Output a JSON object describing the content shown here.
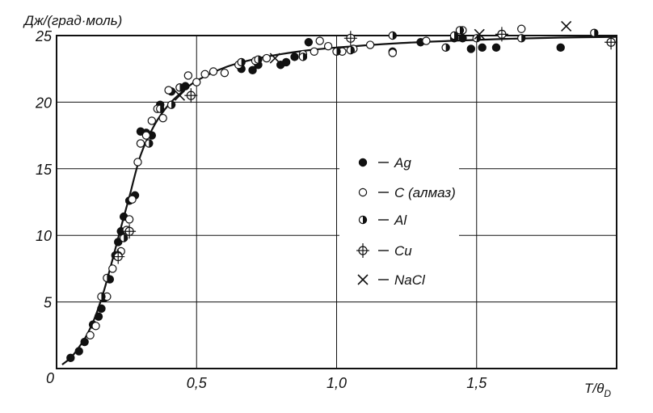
{
  "chart_data": {
    "type": "scatter",
    "ylabel": "Дж/(град·моль)",
    "xlabel": {
      "main": "T/θ",
      "subscript": "D"
    },
    "origin_label": "0",
    "xlim": [
      0,
      2.0
    ],
    "ylim": [
      0,
      25
    ],
    "x_ticks": [
      {
        "value": 0.5,
        "label": "0,5"
      },
      {
        "value": 1.0,
        "label": "1,0"
      },
      {
        "value": 1.5,
        "label": "1,5"
      }
    ],
    "y_ticks": [
      {
        "value": 5,
        "label": "5"
      },
      {
        "value": 10,
        "label": "10"
      },
      {
        "value": 15,
        "label": "15"
      },
      {
        "value": 20,
        "label": "20"
      },
      {
        "value": 25,
        "label": "25"
      }
    ],
    "grid": true,
    "legend_placement": "center-right",
    "curve": {
      "x": [
        0.02,
        0.05,
        0.08,
        0.11,
        0.14,
        0.17,
        0.2,
        0.23,
        0.26,
        0.3,
        0.35,
        0.4,
        0.45,
        0.5,
        0.6,
        0.7,
        0.8,
        0.9,
        1.0,
        1.2,
        1.4,
        1.6,
        1.8,
        2.0
      ],
      "y": [
        0.3,
        0.8,
        1.6,
        2.6,
        4.0,
        5.9,
        8.2,
        10.6,
        12.9,
        16.0,
        18.3,
        19.8,
        20.8,
        21.6,
        22.6,
        23.2,
        23.6,
        23.9,
        24.1,
        24.4,
        24.6,
        24.75,
        24.85,
        24.9
      ]
    },
    "series": [
      {
        "name": "Ag",
        "marker": "filled-circle",
        "x": [
          0.05,
          0.08,
          0.1,
          0.13,
          0.15,
          0.16,
          0.17,
          0.19,
          0.21,
          0.22,
          0.23,
          0.24,
          0.26,
          0.28,
          0.3,
          0.32,
          0.34,
          0.37,
          0.41,
          0.44,
          0.46,
          0.66,
          0.7,
          0.72,
          0.8,
          0.82,
          0.85,
          0.9,
          1.2,
          1.3,
          1.42,
          1.45,
          1.48,
          1.52,
          1.57,
          1.8
        ],
        "y": [
          0.8,
          1.3,
          2.0,
          3.3,
          3.9,
          4.5,
          5.3,
          6.7,
          8.5,
          9.5,
          10.3,
          11.4,
          12.6,
          13.0,
          17.8,
          17.7,
          17.5,
          19.8,
          20.8,
          21.1,
          21.2,
          22.5,
          22.4,
          22.8,
          22.8,
          23.0,
          23.4,
          24.5,
          23.8,
          24.5,
          24.8,
          24.8,
          24.0,
          24.1,
          24.1,
          24.1
        ]
      },
      {
        "name": "С (алмаз)",
        "marker": "open-circle",
        "x": [
          0.12,
          0.14,
          0.18,
          0.2,
          0.23,
          0.25,
          0.26,
          0.27,
          0.29,
          0.3,
          0.32,
          0.34,
          0.36,
          0.38,
          0.4,
          0.47,
          0.5,
          0.53,
          0.56,
          0.6,
          0.65,
          0.71,
          0.75,
          0.88,
          0.92,
          0.94,
          0.97,
          1.02,
          1.06,
          1.12,
          1.2,
          1.32,
          1.45,
          1.66
        ],
        "y": [
          2.5,
          3.2,
          5.4,
          7.5,
          8.8,
          10.4,
          11.2,
          12.7,
          15.5,
          16.9,
          17.5,
          18.6,
          19.5,
          18.8,
          20.9,
          22.0,
          21.5,
          22.1,
          22.3,
          22.2,
          22.8,
          23.1,
          23.3,
          23.6,
          23.8,
          24.6,
          24.2,
          23.8,
          24.0,
          24.3,
          23.7,
          24.6,
          25.4,
          25.5
        ]
      },
      {
        "name": "Al",
        "marker": "half-filled-circle",
        "x": [
          0.16,
          0.18,
          0.22,
          0.24,
          0.33,
          0.37,
          0.41,
          0.44,
          0.66,
          0.72,
          0.88,
          1.0,
          1.05,
          1.2,
          1.39,
          1.42,
          1.44,
          1.5,
          1.66,
          1.92
        ],
        "y": [
          5.4,
          6.8,
          8.5,
          9.8,
          16.9,
          19.5,
          19.8,
          21.1,
          23.0,
          23.2,
          23.4,
          23.8,
          23.9,
          25.0,
          24.1,
          25.0,
          25.4,
          24.8,
          24.8,
          25.2
        ]
      },
      {
        "name": "Cu",
        "marker": "crossed-circle",
        "x": [
          0.22,
          0.26,
          0.48,
          1.05,
          1.59,
          1.98
        ],
        "y": [
          8.4,
          10.3,
          20.5,
          24.8,
          25.1,
          24.5
        ]
      },
      {
        "name": "NaCl",
        "marker": "cross",
        "x": [
          0.44,
          0.78,
          1.51,
          1.82
        ],
        "y": [
          20.5,
          23.3,
          25.1,
          25.7
        ]
      }
    ]
  }
}
